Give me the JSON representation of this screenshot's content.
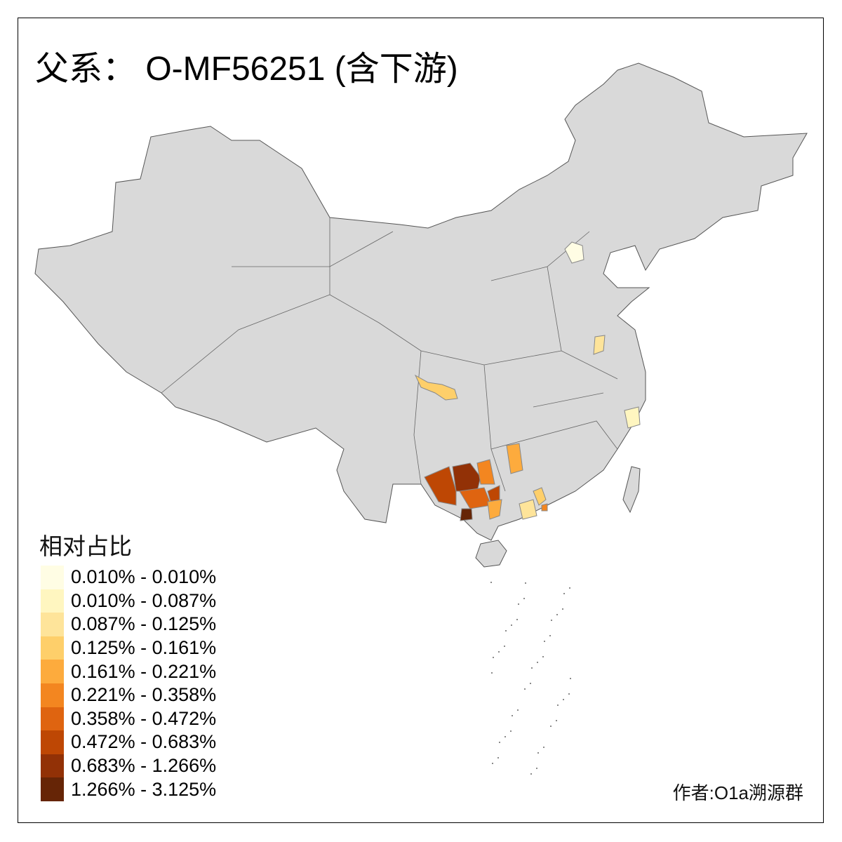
{
  "title": "父系： O-MF56251 (含下游)",
  "legend": {
    "title": "相对占比",
    "items": [
      {
        "label": "0.010% - 0.010%",
        "color": "#FFFDE4"
      },
      {
        "label": "0.010% - 0.087%",
        "color": "#FFF6C0"
      },
      {
        "label": "0.087% - 0.125%",
        "color": "#FEE49A"
      },
      {
        "label": "0.125% - 0.161%",
        "color": "#FECF6A"
      },
      {
        "label": "0.161% - 0.221%",
        "color": "#FDAB3D"
      },
      {
        "label": "0.221% - 0.358%",
        "color": "#F38620"
      },
      {
        "label": "0.358% - 0.472%",
        "color": "#DF6410"
      },
      {
        "label": "0.472% - 0.683%",
        "color": "#BE4704"
      },
      {
        "label": "0.683% - 1.266%",
        "color": "#923106"
      },
      {
        "label": "1.266% - 3.125%",
        "color": "#662506"
      }
    ]
  },
  "map": {
    "base_color": "#D9D9D9",
    "border_color": "#555555"
  },
  "author": "作者:O1a溯源群"
}
